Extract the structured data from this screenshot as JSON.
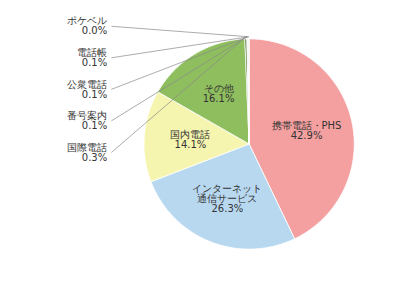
{
  "chart_data": {
    "type": "pie",
    "categories": [
      "携帯電話・PHS",
      "インターネット\n通信サービス",
      "国内電話",
      "その他",
      "国際電話",
      "番号案内",
      "公衆電話",
      "電話帳",
      "ポケベル"
    ],
    "values": [
      42.9,
      26.3,
      14.1,
      16.1,
      0.3,
      0.1,
      0.1,
      0.1,
      0.05
    ],
    "value_labels": [
      "42.9%",
      "26.3%",
      "14.1%",
      "16.1%",
      "0.3%",
      "0.1%",
      "0.1%",
      "0.1%",
      "0.0%"
    ],
    "colors": [
      "#f5a0a0",
      "#b8d8f0",
      "#f5f5b0",
      "#8fbe5f",
      "#3a6e1a",
      "#888888",
      "#888888",
      "#888888",
      "#cccccc"
    ],
    "data_labels": true
  }
}
